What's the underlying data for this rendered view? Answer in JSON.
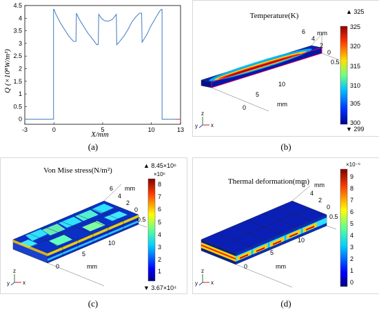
{
  "panels": {
    "a": {
      "caption": "(a)",
      "chart_data": {
        "type": "line",
        "ylabel": "Q (×10⁸W/m³)",
        "xlabel": "X/mm",
        "xlim": [
          -3,
          13
        ],
        "ylim": [
          -0.2,
          4.5
        ],
        "xticks": [
          -3,
          0,
          5,
          10,
          13
        ],
        "yticks": [
          0,
          0.5,
          1,
          1.5,
          2,
          2.5,
          3,
          3.5,
          4,
          4.5
        ],
        "ytick_labels": [
          "0",
          "0.5",
          "1",
          "1.5",
          "2",
          "2.5",
          "3",
          "3.5",
          "4",
          "4.5"
        ],
        "series": [
          {
            "color": "#4f86c6",
            "x": [
              -3,
              -0.05,
              -0.05,
              0,
              0.2,
              0.6,
              1,
              1.5,
              2,
              2.25,
              2.3,
              2.6,
              3,
              3.5,
              4,
              4.4,
              4.55,
              4.6,
              4.9,
              5.2,
              5.6,
              6,
              6.3,
              6.4,
              6.45,
              6.8,
              7.2,
              7.6,
              8,
              8.4,
              8.8,
              9,
              9.05,
              9.3,
              9.6,
              9.9,
              10.2,
              10.5,
              10.9,
              11.05,
              11.1,
              11.1,
              13
            ],
            "y": [
              0,
              0,
              4.35,
              4.35,
              4.15,
              3.85,
              3.6,
              3.3,
              3.08,
              3.08,
              4.2,
              3.95,
              3.7,
              3.4,
              3.15,
              2.95,
              2.95,
              4.15,
              3.98,
              3.9,
              3.88,
              3.95,
              4.1,
              4.15,
              2.95,
              3.1,
              3.3,
              3.55,
              3.85,
              4.05,
              4.2,
              4.2,
              3.05,
              3.2,
              3.4,
              3.65,
              3.85,
              4.05,
              4.3,
              4.35,
              4.35,
              0,
              0
            ]
          }
        ]
      }
    },
    "b": {
      "caption": "(b)",
      "title": "Temperature(K)",
      "max_label": "▲ 325",
      "min_label": "▼ 299",
      "colorbar_ticks": [
        "325",
        "320",
        "315",
        "310",
        "305",
        "300"
      ],
      "axis_labels": [
        "6",
        "4",
        "2",
        "0",
        "0.5",
        "10",
        "5",
        "0",
        "mm",
        "mm"
      ],
      "triad": {
        "y": "y",
        "z": "z",
        "x": "x"
      }
    },
    "c": {
      "caption": "(c)",
      "title": "Von Mise stress(N/m²)",
      "max_label": "▲ 8.45×10⁶",
      "min_label": "▼ 3.67×10⁴",
      "colorbar_exponent": "×10⁶",
      "colorbar_ticks": [
        "8",
        "7",
        "6",
        "5",
        "4",
        "3",
        "2",
        "1"
      ],
      "axis_labels": [
        "6",
        "4",
        "2",
        "0",
        "0.5",
        "10",
        "5",
        "0",
        "mm",
        "mm"
      ],
      "triad": {
        "y": "y",
        "z": "z",
        "x": "x"
      }
    },
    "d": {
      "caption": "(d)",
      "title": "Thermal deformation(mm)",
      "colorbar_exponent": "×10⁻⁶",
      "colorbar_ticks": [
        "9",
        "8",
        "7",
        "6",
        "5",
        "4",
        "3",
        "2",
        "1",
        "0"
      ],
      "axis_labels": [
        "6",
        "4",
        "2",
        "0",
        "0.5",
        "10",
        "5",
        "0",
        "mm",
        "mm"
      ],
      "triad": {
        "y": "y",
        "z": "z",
        "x": "x"
      }
    }
  },
  "colors": {
    "line": "#4f86c6",
    "jet_dark_blue": "#00008f",
    "jet_red": "#c00000"
  }
}
